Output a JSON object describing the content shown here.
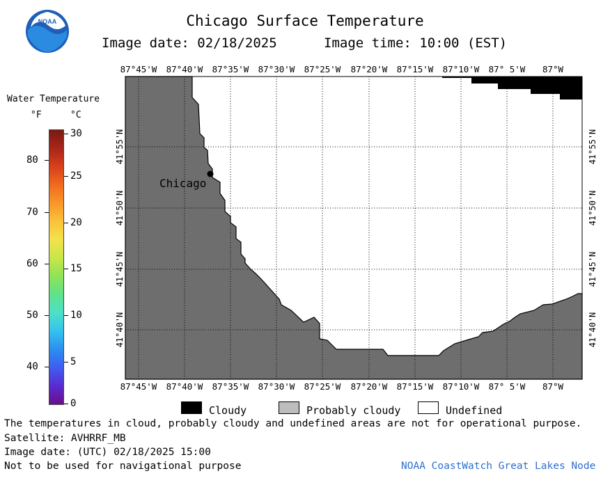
{
  "header": {
    "title": "Chicago Surface Temperature",
    "image_date": "Image date: 02/18/2025",
    "image_time": "Image time: 10:00 (EST)"
  },
  "logo": {
    "text": "NOAA",
    "icon": "noaa-logo-icon"
  },
  "colorbar": {
    "title": "Water Temperature",
    "unit_f": "°F",
    "unit_c": "°C",
    "f_ticks": [
      "80",
      "70",
      "60",
      "50",
      "40"
    ],
    "c_ticks": [
      "30",
      "25",
      "20",
      "15",
      "10",
      "5",
      "0"
    ],
    "colors": [
      "#6a0e8c",
      "#5a2bd0",
      "#3f5df2",
      "#2b8ef0",
      "#35c2ee",
      "#4ee0c8",
      "#5fe28c",
      "#8ee357",
      "#c8e64a",
      "#f4e24a",
      "#fac23a",
      "#f9962a",
      "#f06a1e",
      "#d8401a",
      "#a8261a",
      "#7a1a10"
    ]
  },
  "map": {
    "lon_labels": [
      "87°45'W",
      "87°40'W",
      "87°35'W",
      "87°30'W",
      "87°25'W",
      "87°20'W",
      "87°15'W",
      "87°10'W",
      "87° 5'W",
      "87°W"
    ],
    "lat_labels": [
      "41°55'N",
      "41°50'N",
      "41°45'N",
      "41°40'N"
    ],
    "city_label": "Chicago",
    "colors": {
      "land": "#6e6e6e",
      "cloudy": "#000000",
      "probably_cloudy": "#bdbdbd",
      "undefined": "#ffffff"
    }
  },
  "legend": {
    "cloudy": "Cloudy",
    "probably_cloudy": "Probably cloudy",
    "undefined": "Undefined"
  },
  "footer": {
    "note": "The temperatures in cloud, probably cloudy and undefined areas are not for operational purpose.",
    "satellite": "Satellite: AVHRRF_MB",
    "utc_date": "Image date: (UTC) 02/18/2025  15:00",
    "nav_note": "Not to be used for navigational purpose",
    "credit": "NOAA CoastWatch Great Lakes Node",
    "credit_color": "#2e6fcf"
  }
}
